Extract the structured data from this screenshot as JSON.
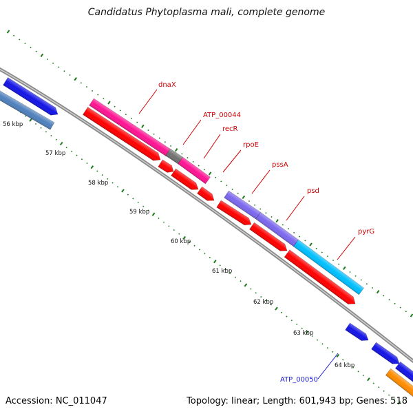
{
  "title": "Candidatus Phytoplasma mali, complete genome",
  "accession": "Accession: NC_011047",
  "summary": "Topology: linear; Length: 601,943 bp; Genes: 518",
  "scale_labels": [
    "56 kbp",
    "57 kbp",
    "58 kbp",
    "59 kbp",
    "60 kbp",
    "61 kbp",
    "62 kbp",
    "63 kbp",
    "64 kbp"
  ],
  "gene_labels": [
    "dnaX",
    "ATP_00044",
    "recR",
    "rpoE",
    "pssA",
    "psd",
    "pyrG",
    "ATP_00050"
  ],
  "colors": {
    "backbone": "#8a8a8a",
    "gene_blue": "#1414e6",
    "gene_steelblue": "#4f81bd",
    "gene_red": "#ff0000",
    "gene_magenta": "#ff1493",
    "gene_gray": "#707070",
    "gene_purple": "#7b68ee",
    "gene_cyan": "#00bfff",
    "gene_orange": "#ff8c00",
    "tick_green": "#1a7a1a",
    "label_red": "#cc0000",
    "label_blue": "#1a1ad0"
  }
}
